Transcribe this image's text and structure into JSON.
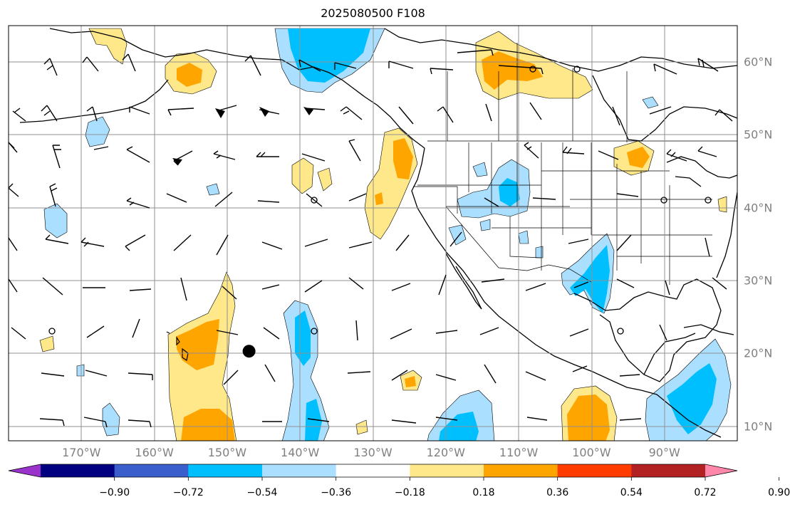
{
  "title": "2025080500 F108",
  "map": {
    "projection": "PlateCarree",
    "lon_range": [
      -180,
      -80
    ],
    "lat_range": [
      8,
      65
    ],
    "gridlines": true,
    "storm_marker": {
      "lon": -147,
      "lat": 20.3
    },
    "lon_labels": [
      {
        "lon": -170,
        "text": "170°W"
      },
      {
        "lon": -160,
        "text": "160°W"
      },
      {
        "lon": -150,
        "text": "150°W"
      },
      {
        "lon": -140,
        "text": "140°W"
      },
      {
        "lon": -130,
        "text": "130°W"
      },
      {
        "lon": -120,
        "text": "120°W"
      },
      {
        "lon": -110,
        "text": "110°W"
      },
      {
        "lon": -100,
        "text": "100°W"
      },
      {
        "lon": -90,
        "text": "90°W"
      }
    ],
    "lat_labels": [
      {
        "lat": 60,
        "text": "60°N"
      },
      {
        "lat": 50,
        "text": "50°N"
      },
      {
        "lat": 40,
        "text": "40°N"
      },
      {
        "lat": 30,
        "text": "30°N"
      },
      {
        "lat": 20,
        "text": "20°N"
      },
      {
        "lat": 10,
        "text": "10°N"
      }
    ]
  },
  "colorbar": {
    "extend": "both",
    "colors": [
      "#9933cc",
      "#000080",
      "#3a5fcd",
      "#00bfff",
      "#aadfff",
      "#ffffff",
      "#ffe88a",
      "#ffa500",
      "#ff3c00",
      "#b22222",
      "#ff88aa"
    ],
    "boundaries": [
      -0.9,
      -0.72,
      -0.54,
      -0.36,
      -0.18,
      0.18,
      0.36,
      0.54,
      0.72,
      0.9
    ],
    "labels": [
      "−0.90",
      "−0.72",
      "−0.54",
      "−0.36",
      "−0.18",
      "0.18",
      "0.36",
      "0.54",
      "0.72",
      "0.90"
    ]
  }
}
